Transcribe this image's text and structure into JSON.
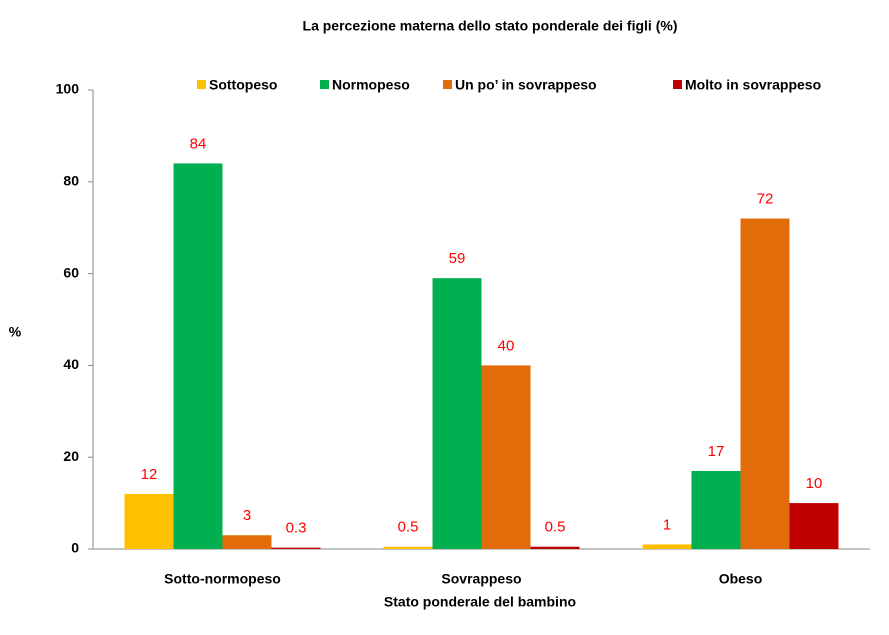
{
  "chart_data": {
    "type": "bar",
    "title": "La percezione materna dello stato ponderale dei figli (%)",
    "x_label": "Stato ponderale  del bambino",
    "y_label": "%",
    "categories": [
      "Sotto-normopeso",
      "Sovrappeso",
      "Obeso"
    ],
    "series": [
      {
        "name": "Sottopeso",
        "color": "#ffc000",
        "values": [
          12,
          0.5,
          1
        ]
      },
      {
        "name": "Normopeso",
        "color": "#00b050",
        "values": [
          84,
          59,
          17
        ]
      },
      {
        "name": "Un po’ in sovrappeso",
        "color": "#e36c0a",
        "values": [
          3,
          40,
          72
        ]
      },
      {
        "name": "Molto in sovrappeso",
        "color": "#c00000",
        "values": [
          0.3,
          0.5,
          10
        ]
      }
    ],
    "ylim": [
      0,
      100
    ],
    "yticks": [
      0,
      20,
      40,
      60,
      80,
      100
    ],
    "grid": false,
    "legend": "top"
  }
}
